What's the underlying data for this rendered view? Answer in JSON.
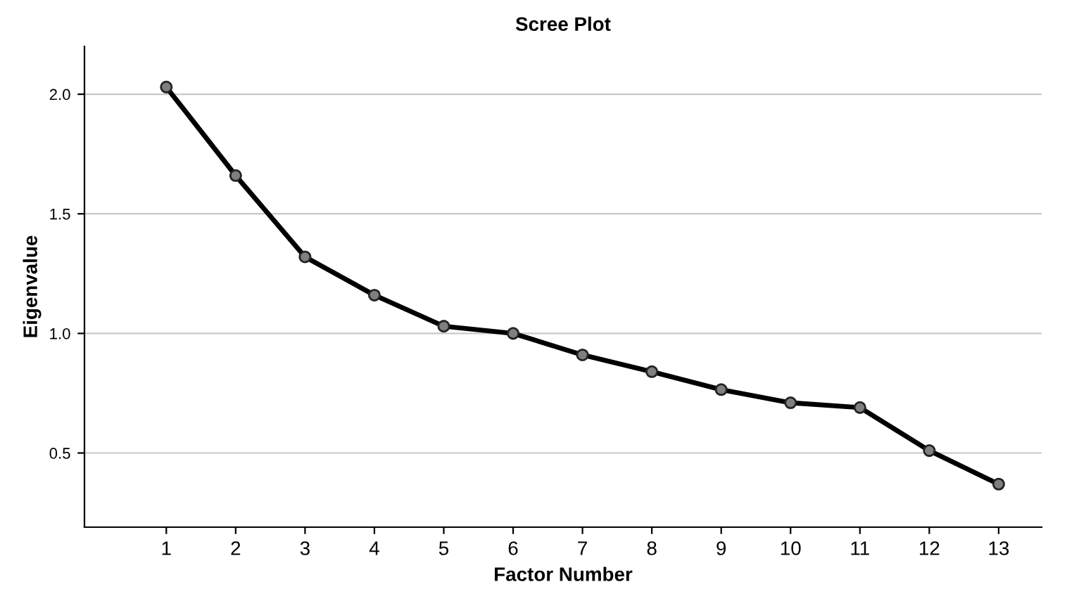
{
  "chart_data": {
    "type": "line",
    "title": "Scree Plot",
    "xlabel": "Factor Number",
    "ylabel": "Eigenvalue",
    "categories": [
      "1",
      "2",
      "3",
      "4",
      "5",
      "6",
      "7",
      "8",
      "9",
      "10",
      "11",
      "12",
      "13"
    ],
    "series": [
      {
        "color": "#000000",
        "values": [
          2.03,
          1.66,
          1.32,
          1.16,
          1.03,
          1.0,
          0.91,
          0.84,
          0.765,
          0.71,
          0.69,
          0.51,
          0.37
        ]
      }
    ],
    "ylim": [
      0.19,
      2.2
    ],
    "yticks": [
      {
        "value": 0.5,
        "label": "0.5"
      },
      {
        "value": 1.0,
        "label": "1.0"
      },
      {
        "value": 1.5,
        "label": "1.5"
      },
      {
        "value": 2.0,
        "label": "2.0"
      }
    ],
    "grid": "y",
    "marker": "circle",
    "line_style": "solid"
  }
}
